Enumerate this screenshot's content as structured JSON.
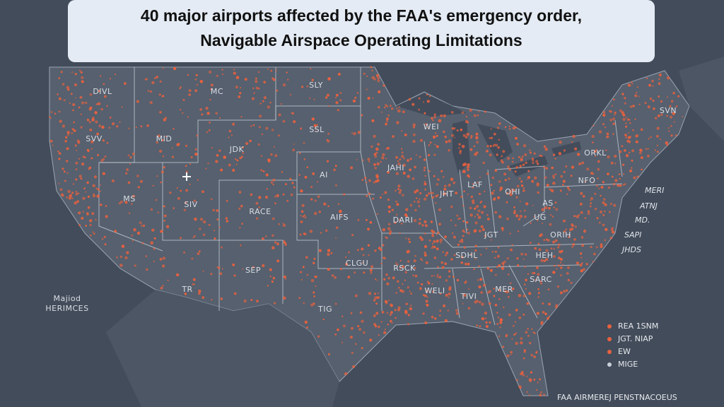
{
  "header": {
    "title_lines": [
      "40 major airports affected by the FAA's emergency order,",
      "Navigable Airspace Operating Limitations"
    ]
  },
  "map_labels": [
    "DIVL",
    "MC",
    "SLY",
    "SVV",
    "MID",
    "SSL",
    "JDK",
    "AI",
    "JAHI",
    "MS",
    "SIV",
    "RACE",
    "AIFS",
    "DARI",
    "WEI",
    "JHT",
    "LAF",
    "OHI",
    "ORKL",
    "SVN",
    "NFO",
    "JGT",
    "ORIH",
    "CLGU",
    "RSCK",
    "SDHL",
    "SEP",
    "TR",
    "WELI",
    "TIVI",
    "MER",
    "SARC",
    "TIG",
    "HEH",
    "UG",
    "AS"
  ],
  "east_labels": [
    "MERI",
    "ATNJ",
    "MD.",
    "SAPI",
    "JHDS"
  ],
  "side_label": [
    "Majiod",
    "HERIMCES"
  ],
  "legend": [
    {
      "label": "REA 1SNM",
      "color": "#e8613f"
    },
    {
      "label": "JGT. NIAP",
      "color": "#e8613f"
    },
    {
      "label": "EW",
      "color": "#e8613f"
    },
    {
      "label": "MIGE",
      "color": "#c9d0da"
    }
  ],
  "footer": "FAA AIRMEREJ PENSTNACOEUS"
}
